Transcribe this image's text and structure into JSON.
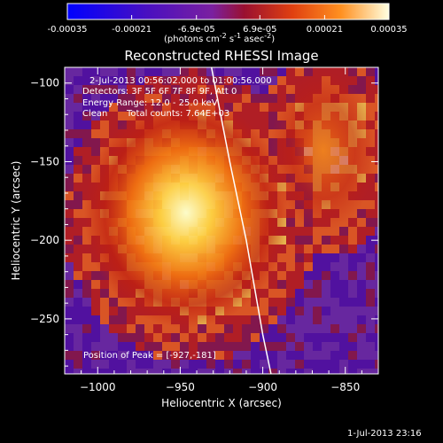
{
  "colorbar": {
    "ticks": [
      "-0.00035",
      "-0.00021",
      "-6.9e-05",
      "6.9e-05",
      "0.00021",
      "0.00035"
    ],
    "range": [
      -0.00035,
      0.00035
    ],
    "units_prefix": "(photons cm",
    "units_exp1": "-2",
    "units_mid": " s",
    "units_exp2": "-1",
    "units_mid2": " asec",
    "units_exp3": "-2",
    "units_suffix": ")"
  },
  "title": "Reconstructed RHESSI Image",
  "info": {
    "time": "2-Jul-2013 00:56:02.000 to 01:00:56.000",
    "detectors": "Detectors: 3F 5F 6F 7F 8F 9F, Att 0",
    "energy": "Energy Range: 12.0 - 25.0 keV",
    "algorithm": "Clean",
    "counts": "Total counts: 7.64E+03"
  },
  "peak": {
    "label": "Position of Peak = [-927,-181]",
    "x": -927,
    "y": -181
  },
  "footer_date": "1-Jul-2013 23:16",
  "chart_data": {
    "type": "heatmap",
    "title": "Reconstructed RHESSI Image",
    "xlabel": "Heliocentric X (arcsec)",
    "ylabel": "Heliocentric Y (arcsec)",
    "xlim": [
      -1020,
      -830
    ],
    "ylim": [
      -285,
      -90
    ],
    "xticks": [
      -1000,
      -950,
      -900,
      -850
    ],
    "yticks": [
      -100,
      -150,
      -200,
      -250
    ],
    "xtick_labels": [
      "−1000",
      "−950",
      "−900",
      "−850"
    ],
    "ytick_labels": [
      "−100",
      "−150",
      "−200",
      "−250"
    ],
    "limb_curve": [
      [
        -932,
        -85
      ],
      [
        -920,
        -150
      ],
      [
        -910,
        -200
      ],
      [
        -900,
        -260
      ],
      [
        -895,
        -285
      ]
    ],
    "colormap": [
      "#0000ff",
      "#5010a0",
      "#6a2aa0",
      "#8a1840",
      "#c02010",
      "#f06010",
      "#ffd040",
      "#ffffe0"
    ]
  }
}
